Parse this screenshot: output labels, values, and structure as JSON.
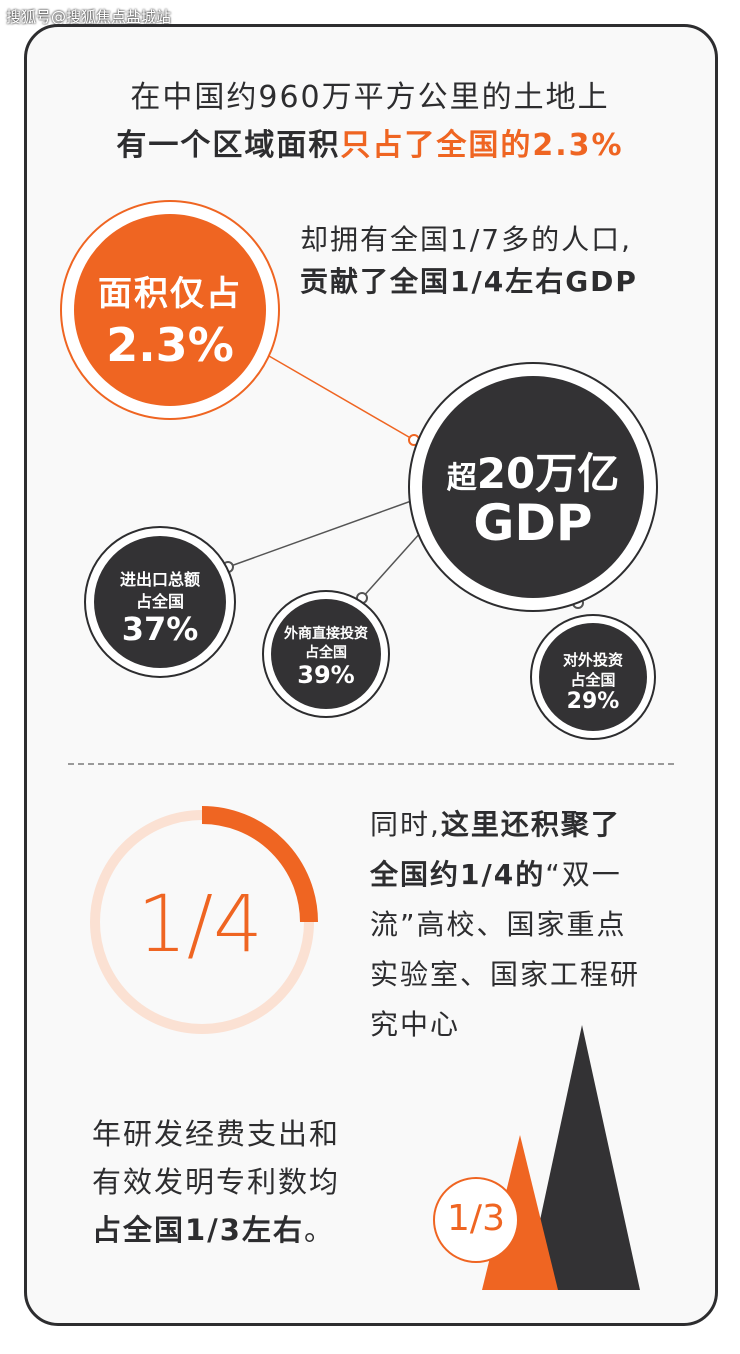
{
  "watermark": "搜狐号@搜狐焦点盐城站",
  "header": {
    "line1": "在中国约960万平方公里的土地上",
    "line2_dark": "有一个区域面积",
    "line2_orange": "只占了全国的2.3%"
  },
  "intro": {
    "line1": "却拥有全国1/7多的人口,",
    "line2": "贡献了全国1/4左右GDP"
  },
  "area_bubble": {
    "label": "面积仅占",
    "value": "2.3%"
  },
  "gdp_bubble": {
    "prefix": "超",
    "number": "20万亿",
    "unit": "GDP"
  },
  "trade_bubble": {
    "line1": "进出口总额",
    "line2": "占全国",
    "value": "37%"
  },
  "fdi_bubble": {
    "line1": "外商直接投资",
    "line2": "占全国",
    "value": "39%"
  },
  "odi_bubble": {
    "line1": "对外投资",
    "line2": "占全国",
    "value": "29%"
  },
  "universities": {
    "fraction": "1/4",
    "fraction_value": 0.25,
    "p_normal_1": "同时,",
    "p_bold_1": "这里还积聚了",
    "p_bold_2": "全国约1/4的",
    "p_normal_2": "“双一",
    "p_line3": "流”高校、国家重点",
    "p_line4": "实验室、国家工程研",
    "p_line5": "究中心"
  },
  "rnd": {
    "line1": "年研发经费支出和",
    "line2": "有效发明专利数均",
    "line3_bold": "占全国1/3左右",
    "line3_end": "。",
    "fraction": "1/3"
  },
  "colors": {
    "orange": "#ef6522",
    "dark": "#333234",
    "ring_light": "#fbe1d3"
  }
}
